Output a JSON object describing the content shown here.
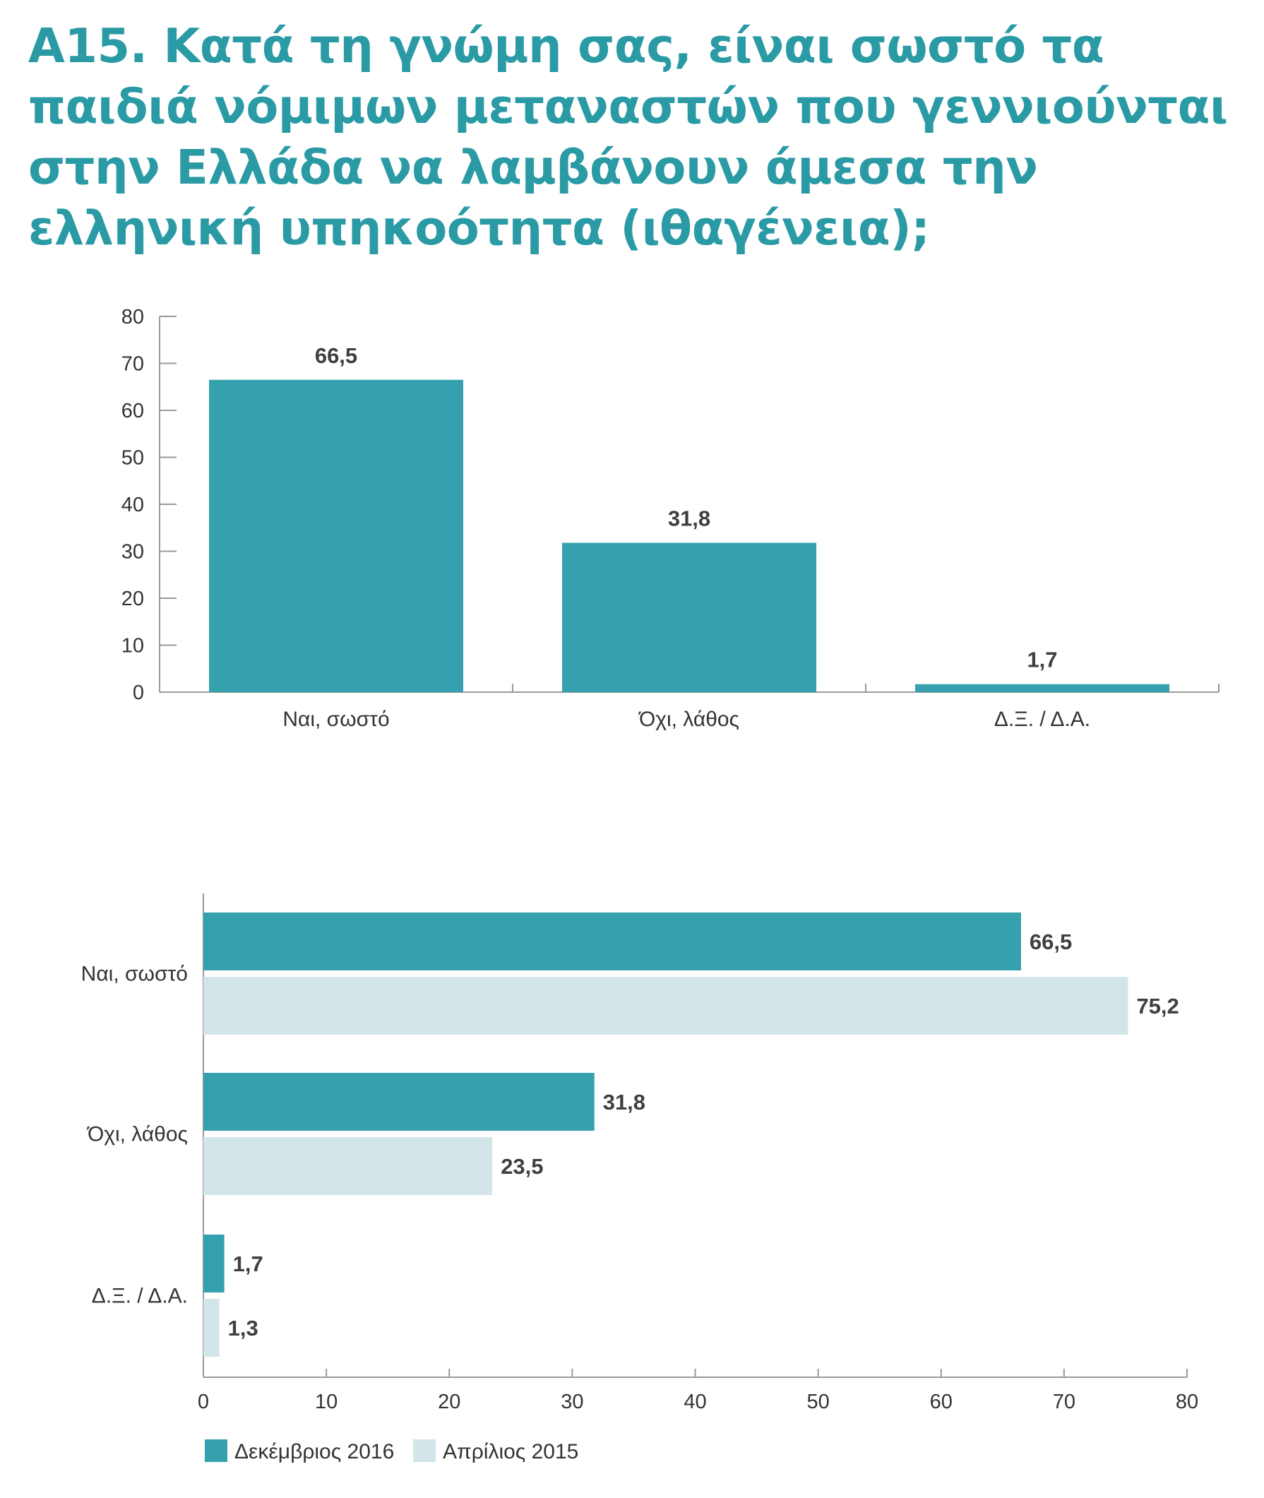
{
  "title_lines": [
    "Α15. Κατά τη γνώμη σας, είναι σωστό τα",
    "παιδιά νόμιμων μεταναστών που γεννιούνται",
    "στην Ελλάδα να λαμβάνουν άμεσα την",
    "ελληνική υπηκοότητα (ιθαγένεια);"
  ],
  "colors": {
    "accent": "#35a1ae",
    "light": "#d2e5e9",
    "title": "#2a9aa5",
    "axis": "#9a9a9a"
  },
  "chart_data": [
    {
      "type": "bar",
      "orientation": "vertical",
      "categories": [
        "Ναι, σωστό",
        "Όχι, λάθος",
        "Δ.Ξ. / Δ.Α."
      ],
      "series": [
        {
          "values": [
            66.5,
            31.8,
            1.7
          ],
          "labels": [
            "66,5",
            "31,8",
            "1,7"
          ],
          "color": "#35a1ae"
        }
      ],
      "ylim": [
        0,
        80
      ],
      "yticks": [
        "0",
        "10",
        "20",
        "30",
        "40",
        "50",
        "60",
        "70",
        "80"
      ],
      "grid": false
    },
    {
      "type": "bar",
      "orientation": "horizontal",
      "categories": [
        "Ναι, σωστό",
        "Όχι, λάθος",
        "Δ.Ξ. / Δ.Α."
      ],
      "series": [
        {
          "name": "Δεκέμβριος 2016",
          "values": [
            66.5,
            31.8,
            1.7
          ],
          "labels": [
            "66,5",
            "31,8",
            "1,7"
          ],
          "color": "#35a1ae"
        },
        {
          "name": "Απρίλιος 2015",
          "values": [
            75.2,
            23.5,
            1.3
          ],
          "labels": [
            "75,2",
            "23,5",
            "1,3"
          ],
          "color": "#d2e5e9"
        }
      ],
      "xlim": [
        0,
        80
      ],
      "xticks": [
        "0",
        "10",
        "20",
        "30",
        "40",
        "50",
        "60",
        "70",
        "80"
      ],
      "legend": "bottom-left",
      "grid": false
    }
  ]
}
